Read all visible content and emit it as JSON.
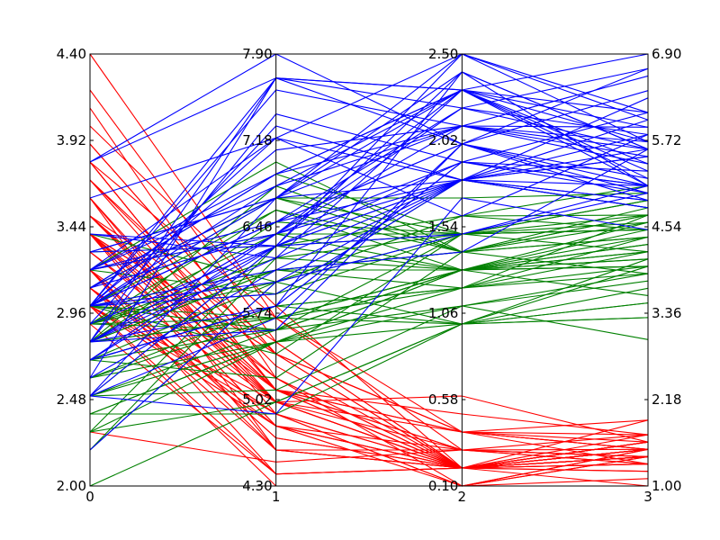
{
  "chart_data": {
    "type": "line",
    "subtype": "parallel-coordinates",
    "title": "",
    "xlabel": "",
    "ylabel": "",
    "grid": false,
    "legend": "none",
    "x_ticks": [
      "0",
      "1",
      "2",
      "3"
    ],
    "axes": [
      {
        "name": "",
        "range": [
          2.0,
          4.4
        ],
        "ticks": [
          "2.00",
          "2.48",
          "2.96",
          "3.44",
          "3.92",
          "4.40"
        ]
      },
      {
        "name": "",
        "range": [
          4.3,
          7.9
        ],
        "ticks": [
          "4.30",
          "5.02",
          "5.74",
          "6.46",
          "7.18",
          "7.90"
        ]
      },
      {
        "name": "",
        "range": [
          0.1,
          2.5
        ],
        "ticks": [
          "0.10",
          "0.58",
          "1.06",
          "1.54",
          "2.02",
          "2.50"
        ]
      },
      {
        "name": "",
        "range": [
          1.0,
          6.9
        ],
        "ticks": [
          "1.00",
          "2.18",
          "3.36",
          "4.54",
          "5.72",
          "6.90"
        ]
      }
    ],
    "series": [
      {
        "color": "#ff0000",
        "values": [
          [
            3.5,
            5.1,
            0.2,
            1.4
          ],
          [
            3.0,
            4.9,
            0.2,
            1.4
          ],
          [
            3.2,
            4.7,
            0.2,
            1.3
          ],
          [
            3.1,
            4.6,
            0.2,
            1.5
          ],
          [
            3.6,
            5.0,
            0.2,
            1.4
          ],
          [
            3.9,
            5.4,
            0.4,
            1.7
          ],
          [
            3.4,
            4.6,
            0.3,
            1.4
          ],
          [
            3.4,
            5.0,
            0.2,
            1.5
          ],
          [
            2.9,
            4.4,
            0.2,
            1.4
          ],
          [
            3.1,
            4.9,
            0.1,
            1.5
          ],
          [
            3.7,
            5.4,
            0.2,
            1.5
          ],
          [
            3.4,
            4.8,
            0.2,
            1.6
          ],
          [
            3.0,
            4.8,
            0.1,
            1.4
          ],
          [
            3.0,
            4.3,
            0.1,
            1.1
          ],
          [
            4.0,
            5.8,
            0.2,
            1.2
          ],
          [
            4.4,
            5.7,
            0.4,
            1.5
          ],
          [
            3.9,
            5.4,
            0.4,
            1.3
          ],
          [
            3.5,
            5.1,
            0.3,
            1.4
          ],
          [
            3.8,
            5.7,
            0.3,
            1.7
          ],
          [
            3.8,
            5.1,
            0.3,
            1.5
          ],
          [
            3.4,
            5.4,
            0.2,
            1.7
          ],
          [
            3.7,
            5.1,
            0.4,
            1.5
          ],
          [
            3.6,
            4.6,
            0.2,
            1.0
          ],
          [
            3.3,
            5.1,
            0.5,
            1.7
          ],
          [
            3.4,
            4.8,
            0.2,
            1.9
          ],
          [
            3.0,
            5.0,
            0.2,
            1.6
          ],
          [
            3.4,
            5.0,
            0.4,
            1.6
          ],
          [
            3.5,
            5.2,
            0.2,
            1.5
          ],
          [
            3.4,
            5.2,
            0.2,
            1.4
          ],
          [
            3.2,
            4.7,
            0.2,
            1.6
          ],
          [
            3.1,
            4.8,
            0.2,
            1.6
          ],
          [
            3.4,
            5.4,
            0.4,
            1.5
          ],
          [
            4.1,
            5.2,
            0.1,
            1.5
          ],
          [
            4.2,
            5.5,
            0.2,
            1.4
          ],
          [
            3.1,
            4.9,
            0.2,
            1.5
          ],
          [
            3.2,
            5.0,
            0.2,
            1.2
          ],
          [
            3.5,
            5.5,
            0.2,
            1.3
          ],
          [
            3.6,
            4.9,
            0.1,
            1.4
          ],
          [
            3.0,
            4.4,
            0.2,
            1.3
          ],
          [
            3.4,
            5.1,
            0.2,
            1.5
          ],
          [
            3.5,
            5.0,
            0.3,
            1.3
          ],
          [
            2.3,
            4.5,
            0.3,
            1.3
          ],
          [
            3.2,
            4.4,
            0.2,
            1.3
          ],
          [
            3.5,
            5.0,
            0.6,
            1.6
          ],
          [
            3.8,
            5.1,
            0.4,
            1.9
          ],
          [
            3.0,
            4.8,
            0.3,
            1.4
          ],
          [
            3.8,
            5.1,
            0.2,
            1.6
          ],
          [
            3.2,
            4.6,
            0.2,
            1.4
          ],
          [
            3.7,
            5.3,
            0.2,
            1.5
          ],
          [
            3.3,
            5.0,
            0.2,
            1.4
          ]
        ]
      },
      {
        "color": "#008000",
        "values": [
          [
            3.2,
            7.0,
            1.4,
            4.7
          ],
          [
            3.2,
            6.4,
            1.5,
            4.5
          ],
          [
            3.1,
            6.9,
            1.5,
            4.9
          ],
          [
            2.3,
            5.5,
            1.3,
            4.0
          ],
          [
            2.8,
            6.5,
            1.5,
            4.6
          ],
          [
            2.8,
            5.7,
            1.3,
            4.5
          ],
          [
            3.3,
            6.3,
            1.6,
            4.7
          ],
          [
            2.4,
            4.9,
            1.0,
            3.3
          ],
          [
            2.9,
            6.6,
            1.3,
            4.6
          ],
          [
            2.7,
            5.2,
            1.4,
            3.9
          ],
          [
            2.0,
            5.0,
            1.0,
            3.5
          ],
          [
            3.0,
            5.9,
            1.5,
            4.2
          ],
          [
            2.2,
            6.0,
            1.0,
            4.0
          ],
          [
            2.9,
            6.1,
            1.4,
            4.7
          ],
          [
            2.9,
            5.6,
            1.3,
            3.6
          ],
          [
            3.1,
            6.7,
            1.4,
            4.4
          ],
          [
            3.0,
            5.6,
            1.5,
            4.5
          ],
          [
            2.7,
            5.8,
            1.0,
            4.1
          ],
          [
            2.2,
            6.2,
            1.5,
            4.5
          ],
          [
            2.5,
            5.6,
            1.1,
            3.9
          ],
          [
            3.2,
            5.9,
            1.8,
            4.8
          ],
          [
            2.8,
            6.1,
            1.3,
            4.0
          ],
          [
            2.5,
            6.3,
            1.5,
            4.9
          ],
          [
            2.8,
            6.1,
            1.2,
            4.7
          ],
          [
            2.9,
            6.4,
            1.3,
            4.3
          ],
          [
            3.0,
            6.6,
            1.4,
            4.4
          ],
          [
            2.8,
            6.8,
            1.4,
            4.8
          ],
          [
            3.0,
            6.7,
            1.7,
            5.0
          ],
          [
            2.9,
            6.0,
            1.5,
            4.5
          ],
          [
            2.6,
            5.7,
            1.0,
            3.5
          ],
          [
            2.4,
            5.5,
            1.1,
            3.8
          ],
          [
            2.4,
            5.5,
            1.0,
            3.7
          ],
          [
            2.7,
            5.8,
            1.2,
            3.9
          ],
          [
            2.7,
            6.0,
            1.6,
            5.1
          ],
          [
            3.0,
            5.4,
            1.5,
            4.5
          ],
          [
            3.4,
            6.0,
            1.6,
            4.5
          ],
          [
            3.1,
            6.7,
            1.5,
            4.7
          ],
          [
            2.3,
            6.3,
            1.3,
            4.4
          ],
          [
            3.0,
            5.6,
            1.3,
            4.1
          ],
          [
            2.5,
            5.5,
            1.3,
            4.0
          ],
          [
            2.6,
            5.5,
            1.2,
            4.4
          ],
          [
            3.0,
            6.1,
            1.4,
            4.6
          ],
          [
            2.6,
            5.8,
            1.2,
            4.0
          ],
          [
            2.3,
            5.0,
            1.0,
            3.3
          ],
          [
            2.7,
            5.6,
            1.3,
            4.2
          ],
          [
            3.0,
            5.7,
            1.2,
            4.2
          ],
          [
            2.9,
            5.7,
            1.3,
            4.2
          ],
          [
            2.9,
            6.2,
            1.3,
            4.3
          ],
          [
            2.5,
            5.1,
            1.1,
            3.0
          ],
          [
            2.8,
            5.7,
            1.3,
            4.1
          ]
        ]
      },
      {
        "color": "#0000ff",
        "values": [
          [
            3.3,
            6.3,
            2.5,
            6.0
          ],
          [
            2.7,
            5.8,
            1.9,
            5.1
          ],
          [
            3.0,
            7.1,
            2.1,
            5.9
          ],
          [
            2.9,
            6.3,
            1.8,
            5.6
          ],
          [
            3.0,
            6.5,
            2.2,
            5.8
          ],
          [
            3.0,
            7.6,
            2.1,
            6.6
          ],
          [
            2.5,
            4.9,
            1.7,
            4.5
          ],
          [
            2.9,
            7.3,
            1.8,
            6.3
          ],
          [
            2.5,
            6.7,
            1.8,
            5.8
          ],
          [
            3.6,
            7.2,
            2.5,
            6.1
          ],
          [
            3.2,
            6.5,
            2.0,
            5.1
          ],
          [
            2.7,
            6.4,
            1.9,
            5.3
          ],
          [
            3.0,
            6.8,
            2.1,
            5.5
          ],
          [
            2.5,
            5.7,
            2.0,
            5.0
          ],
          [
            2.8,
            5.8,
            2.4,
            5.1
          ],
          [
            3.2,
            6.4,
            2.3,
            5.3
          ],
          [
            3.0,
            6.5,
            1.8,
            5.5
          ],
          [
            3.8,
            7.7,
            2.2,
            6.7
          ],
          [
            2.6,
            7.7,
            2.3,
            6.9
          ],
          [
            2.2,
            6.0,
            1.5,
            5.0
          ],
          [
            3.2,
            6.9,
            2.3,
            5.7
          ],
          [
            2.8,
            5.6,
            2.0,
            4.9
          ],
          [
            2.8,
            7.7,
            2.0,
            6.7
          ],
          [
            2.7,
            6.3,
            1.8,
            4.9
          ],
          [
            3.3,
            6.7,
            2.1,
            5.7
          ],
          [
            3.2,
            7.2,
            1.8,
            6.0
          ],
          [
            2.8,
            6.2,
            1.8,
            4.8
          ],
          [
            3.0,
            6.1,
            1.8,
            4.9
          ],
          [
            2.8,
            6.4,
            2.1,
            5.6
          ],
          [
            3.0,
            7.2,
            1.6,
            5.8
          ],
          [
            2.8,
            7.4,
            1.9,
            6.1
          ],
          [
            3.8,
            7.9,
            2.0,
            6.4
          ],
          [
            2.8,
            6.4,
            2.2,
            5.6
          ],
          [
            2.8,
            6.3,
            1.5,
            5.1
          ],
          [
            2.6,
            6.1,
            1.4,
            5.6
          ],
          [
            3.0,
            7.7,
            2.3,
            6.1
          ],
          [
            3.4,
            6.3,
            2.4,
            5.6
          ],
          [
            3.1,
            6.4,
            1.8,
            5.5
          ],
          [
            3.0,
            6.0,
            1.8,
            4.8
          ],
          [
            3.1,
            6.9,
            2.1,
            5.4
          ],
          [
            3.1,
            6.7,
            2.4,
            5.6
          ],
          [
            3.1,
            6.9,
            2.3,
            5.1
          ],
          [
            2.7,
            5.8,
            1.9,
            5.1
          ],
          [
            3.2,
            6.8,
            2.3,
            5.9
          ],
          [
            3.3,
            6.7,
            2.5,
            5.7
          ],
          [
            3.0,
            6.7,
            2.3,
            5.2
          ],
          [
            2.5,
            6.3,
            1.9,
            5.0
          ],
          [
            3.0,
            6.5,
            2.0,
            5.2
          ],
          [
            3.4,
            6.2,
            2.3,
            5.4
          ],
          [
            3.0,
            5.9,
            1.8,
            5.1
          ]
        ]
      }
    ]
  }
}
